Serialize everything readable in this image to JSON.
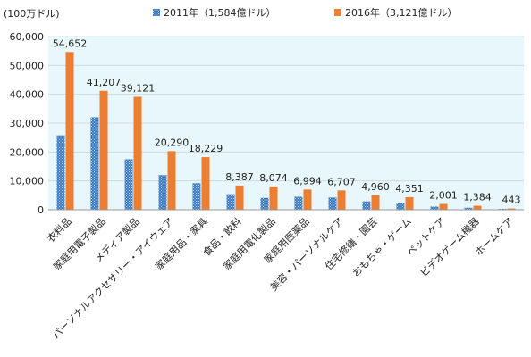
{
  "chart_data": {
    "type": "bar",
    "unit_label": "(100万ドル)",
    "categories": [
      "衣料品",
      "家庭用電子製品",
      "メディア製品",
      "パーソナルアクセサリー・アイウェア",
      "家庭用品・家具",
      "食品・飲料",
      "家庭用電化製品",
      "家庭用医薬品",
      "美容・パーソナルケア",
      "住宅修繕・園芸",
      "おもちゃ・ゲーム",
      "ペットケア",
      "ビデオゲーム機器",
      "ホームケア"
    ],
    "series": [
      {
        "name": "2011年（1,584億ドル）",
        "color": "#3a78c2",
        "pattern": "dotted",
        "values": [
          25800,
          32000,
          17500,
          12000,
          9200,
          5400,
          4100,
          4500,
          4200,
          2900,
          2300,
          1100,
          700,
          300
        ]
      },
      {
        "name": "2016年（3,121億ドル）",
        "color": "#ed7d31",
        "pattern": "solid",
        "values": [
          54652,
          41207,
          39121,
          20290,
          18229,
          8387,
          8074,
          6994,
          6707,
          4960,
          4351,
          2001,
          1384,
          443
        ]
      }
    ],
    "data_labels": [
      "54,652",
      "41,207",
      "39,121",
      "20,290",
      "18,229",
      "8,387",
      "8,074",
      "6,994",
      "6,707",
      "4,960",
      "4,351",
      "2,001",
      "1,384",
      "443"
    ],
    "yticks": [
      "0",
      "10,000",
      "20,000",
      "30,000",
      "40,000",
      "50,000",
      "60,000"
    ],
    "ylim": [
      0,
      60000
    ],
    "plot_background": "#e8f7fb",
    "legend_position": "top"
  }
}
